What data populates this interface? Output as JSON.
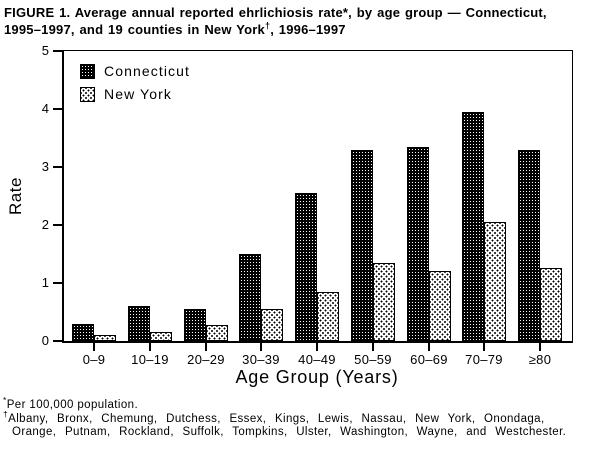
{
  "figure": {
    "title_line1": "FIGURE 1. Average annual reported ehrlichiosis rate*, by age group — Connecticut,",
    "title_line2_pre": "1995–1997, and 19 counties in New York",
    "title_dagger": "†",
    "title_line2_post": ", 1996–1997"
  },
  "chart_data": {
    "type": "bar",
    "title": "FIGURE 1. Average annual reported ehrlichiosis rate*, by age group — Connecticut, 1995–1997, and 19 counties in New York†, 1996–1997",
    "categories": [
      "0–9",
      "10–19",
      "20–29",
      "30–39",
      "40–49",
      "50–59",
      "60–69",
      "70–79",
      "≥80"
    ],
    "series": [
      {
        "name": "Connecticut",
        "values": [
          0.3,
          0.6,
          0.55,
          1.5,
          2.55,
          3.3,
          3.35,
          3.95,
          3.3
        ]
      },
      {
        "name": "New York",
        "values": [
          0.1,
          0.15,
          0.27,
          0.55,
          0.85,
          1.35,
          1.2,
          2.05,
          1.25
        ]
      }
    ],
    "xlabel": "Age Group (Years)",
    "ylabel": "Rate",
    "ylim": [
      0,
      5
    ],
    "yticks": [
      0,
      1,
      2,
      3,
      4,
      5
    ],
    "grid": false,
    "legend_position": "inside top-left",
    "bar_styles": [
      "black with white dot grid",
      "white with black dot lattice"
    ]
  },
  "footnotes": {
    "asterisk_symbol": "*",
    "asterisk_text": "Per 100,000 population.",
    "dagger_symbol": "†",
    "dagger_line1": "Albany, Bronx, Chemung, Dutchess, Essex, Kings, Lewis, Nassau, New York, Onondaga,",
    "dagger_line2": "Orange, Putnam, Rockland, Suffolk, Tompkins, Ulster, Washington, Wayne, and Westchester."
  },
  "colors": {
    "foreground": "#000000",
    "background": "#ffffff",
    "connecticut_fill": "#000000",
    "connecticut_dots": "#ffffff",
    "new_york_fill": "#ffffff",
    "new_york_dots": "#000000"
  }
}
